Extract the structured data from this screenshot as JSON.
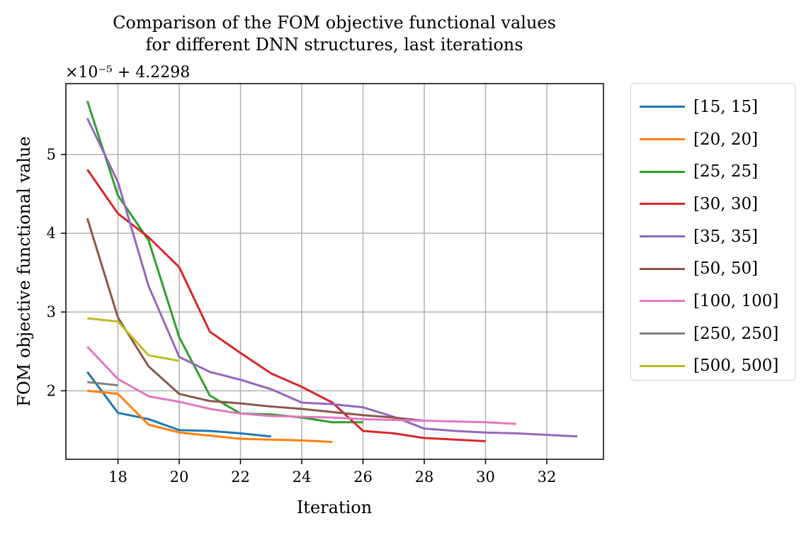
{
  "chart_data": {
    "type": "line",
    "title_lines": [
      "Comparison of the FOM objective functional values",
      "for different DNN structures, last iterations"
    ],
    "xlabel": "Iteration",
    "ylabel": "FOM objective functional value",
    "y_offset_label": "×10⁻⁵ + 4.2298",
    "xlim": [
      16.3,
      33.85
    ],
    "ylim": [
      1.13,
      5.9
    ],
    "xticks": [
      18,
      20,
      22,
      24,
      26,
      28,
      30,
      32
    ],
    "yticks": [
      2,
      3,
      4,
      5
    ],
    "grid": true,
    "legend_position": "outside-right",
    "series": [
      {
        "name": "[15, 15]",
        "color": "#1f77b4",
        "x": [
          17,
          18,
          19,
          20,
          21,
          22,
          23
        ],
        "y": [
          2.24,
          1.72,
          1.64,
          1.5,
          1.49,
          1.46,
          1.42
        ]
      },
      {
        "name": "[20, 20]",
        "color": "#ff7f0e",
        "x": [
          17,
          18,
          19,
          20,
          21,
          22,
          23,
          24,
          25
        ],
        "y": [
          2.0,
          1.96,
          1.57,
          1.47,
          1.43,
          1.39,
          1.38,
          1.37,
          1.35
        ]
      },
      {
        "name": "[25, 25]",
        "color": "#2ca02c",
        "x": [
          17,
          18,
          19,
          20,
          21,
          22,
          23,
          24,
          25,
          26
        ],
        "y": [
          5.68,
          4.48,
          3.91,
          2.68,
          1.94,
          1.71,
          1.7,
          1.66,
          1.6,
          1.6
        ]
      },
      {
        "name": "[30, 30]",
        "color": "#d62728",
        "x": [
          17,
          18,
          19,
          20,
          21,
          22,
          23,
          24,
          25,
          26,
          27,
          28,
          29,
          30
        ],
        "y": [
          4.81,
          4.25,
          3.95,
          3.57,
          2.75,
          2.48,
          2.22,
          2.05,
          1.85,
          1.49,
          1.46,
          1.4,
          1.38,
          1.36
        ]
      },
      {
        "name": "[35, 35]",
        "color": "#9467bd",
        "x": [
          17,
          18,
          19,
          20,
          21,
          22,
          23,
          24,
          25,
          26,
          27,
          28,
          29,
          30,
          31,
          32,
          33
        ],
        "y": [
          5.46,
          4.65,
          3.33,
          2.43,
          2.24,
          2.14,
          2.02,
          1.85,
          1.83,
          1.79,
          1.67,
          1.52,
          1.49,
          1.47,
          1.46,
          1.44,
          1.42
        ]
      },
      {
        "name": "[50, 50]",
        "color": "#8c564b",
        "x": [
          17,
          18,
          19,
          20,
          21,
          22,
          23,
          24,
          25,
          26,
          27,
          28
        ],
        "y": [
          4.19,
          2.93,
          2.31,
          1.96,
          1.87,
          1.84,
          1.8,
          1.77,
          1.73,
          1.69,
          1.66,
          1.62
        ]
      },
      {
        "name": "[100, 100]",
        "color": "#e377c2",
        "x": [
          17,
          18,
          19,
          20,
          21,
          22,
          23,
          24,
          25,
          26,
          27,
          28,
          29,
          30,
          31
        ],
        "y": [
          2.56,
          2.15,
          1.93,
          1.86,
          1.77,
          1.71,
          1.68,
          1.67,
          1.66,
          1.64,
          1.63,
          1.62,
          1.61,
          1.6,
          1.58
        ]
      },
      {
        "name": "[250, 250]",
        "color": "#7f7f7f",
        "x": [
          17,
          18
        ],
        "y": [
          2.11,
          2.07
        ]
      },
      {
        "name": "[500, 500]",
        "color": "#bcbd22",
        "x": [
          17,
          18,
          19,
          20
        ],
        "y": [
          2.92,
          2.88,
          2.45,
          2.38
        ]
      }
    ]
  }
}
